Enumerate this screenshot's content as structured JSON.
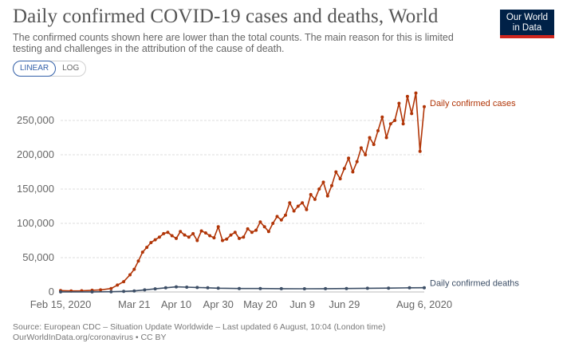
{
  "header": {
    "title": "Daily confirmed COVID-19 cases and deaths, World",
    "subtitle": "The confirmed counts shown here are lower than the total counts. The main reason for this is limited testing and challenges in the attribution of the cause of death."
  },
  "logo": {
    "line1": "Our World",
    "line2": "in Data"
  },
  "scale_toggle": {
    "linear": "LINEAR",
    "log": "LOG",
    "selected": "LINEAR"
  },
  "footer": {
    "source": "Source: European CDC – Situation Update Worldwide – Last updated 6 August, 10:04 (London time)",
    "url": "OurWorldInData.org/coronavirus • CC BY"
  },
  "colors": {
    "cases": "#b13507",
    "deaths": "#3c4e66",
    "grid": "#dddddd",
    "text": "#666666"
  },
  "chart_data": {
    "type": "line",
    "xlim": [
      "2020-02-15",
      "2020-08-06"
    ],
    "ylim": [
      0,
      300000
    ],
    "grid": "horizontal dashed",
    "x_ticks": [
      "Feb 15, 2020",
      "Mar 21",
      "Apr 10",
      "Apr 30",
      "May 20",
      "Jun 9",
      "Jun 29",
      "Aug 6, 2020"
    ],
    "y_ticks": [
      "0",
      "50,000",
      "100,000",
      "150,000",
      "200,000",
      "250,000"
    ],
    "series": [
      {
        "name": "Daily confirmed cases",
        "x": [
          "2020-02-15",
          "2020-02-20",
          "2020-02-25",
          "2020-03-01",
          "2020-03-05",
          "2020-03-10",
          "2020-03-13",
          "2020-03-16",
          "2020-03-19",
          "2020-03-21",
          "2020-03-23",
          "2020-03-25",
          "2020-03-27",
          "2020-03-29",
          "2020-03-31",
          "2020-04-02",
          "2020-04-04",
          "2020-04-06",
          "2020-04-08",
          "2020-04-10",
          "2020-04-12",
          "2020-04-14",
          "2020-04-16",
          "2020-04-18",
          "2020-04-20",
          "2020-04-22",
          "2020-04-24",
          "2020-04-26",
          "2020-04-28",
          "2020-04-30",
          "2020-05-02",
          "2020-05-04",
          "2020-05-06",
          "2020-05-08",
          "2020-05-10",
          "2020-05-12",
          "2020-05-14",
          "2020-05-16",
          "2020-05-18",
          "2020-05-20",
          "2020-05-22",
          "2020-05-24",
          "2020-05-26",
          "2020-05-28",
          "2020-05-30",
          "2020-06-01",
          "2020-06-03",
          "2020-06-05",
          "2020-06-07",
          "2020-06-09",
          "2020-06-11",
          "2020-06-13",
          "2020-06-15",
          "2020-06-17",
          "2020-06-19",
          "2020-06-21",
          "2020-06-23",
          "2020-06-25",
          "2020-06-27",
          "2020-06-29",
          "2020-07-01",
          "2020-07-03",
          "2020-07-05",
          "2020-07-07",
          "2020-07-09",
          "2020-07-11",
          "2020-07-13",
          "2020-07-15",
          "2020-07-17",
          "2020-07-19",
          "2020-07-21",
          "2020-07-23",
          "2020-07-25",
          "2020-07-27",
          "2020-07-29",
          "2020-07-31",
          "2020-08-02",
          "2020-08-04",
          "2020-08-06"
        ],
        "values": [
          2000,
          1500,
          1800,
          2500,
          3000,
          5000,
          10000,
          15000,
          25000,
          33000,
          45000,
          58000,
          65000,
          72000,
          76000,
          80000,
          85000,
          87000,
          82000,
          78000,
          88000,
          83000,
          80000,
          85000,
          75000,
          89000,
          86000,
          82000,
          79000,
          95000,
          75000,
          77000,
          83000,
          87000,
          78000,
          80000,
          92000,
          87000,
          90000,
          102000,
          95000,
          88000,
          100000,
          110000,
          105000,
          112000,
          130000,
          118000,
          125000,
          130000,
          120000,
          142000,
          135000,
          150000,
          160000,
          140000,
          155000,
          175000,
          165000,
          180000,
          195000,
          175000,
          190000,
          210000,
          200000,
          225000,
          215000,
          235000,
          255000,
          225000,
          245000,
          250000,
          275000,
          245000,
          285000,
          260000,
          290000,
          205000,
          270000
        ]
      },
      {
        "name": "Daily confirmed deaths",
        "x": [
          "2020-02-15",
          "2020-03-01",
          "2020-03-10",
          "2020-03-16",
          "2020-03-21",
          "2020-03-26",
          "2020-03-31",
          "2020-04-05",
          "2020-04-10",
          "2020-04-15",
          "2020-04-20",
          "2020-04-25",
          "2020-04-30",
          "2020-05-10",
          "2020-05-20",
          "2020-05-30",
          "2020-06-10",
          "2020-06-20",
          "2020-06-30",
          "2020-07-10",
          "2020-07-20",
          "2020-07-30",
          "2020-08-06"
        ],
        "values": [
          100,
          100,
          300,
          800,
          1500,
          3000,
          4500,
          6000,
          7500,
          7000,
          6500,
          6000,
          5500,
          5000,
          5000,
          4800,
          4700,
          4800,
          5000,
          5300,
          5600,
          6000,
          6200
        ]
      }
    ],
    "series_labels": [
      "Daily confirmed cases",
      "Daily confirmed deaths"
    ]
  }
}
